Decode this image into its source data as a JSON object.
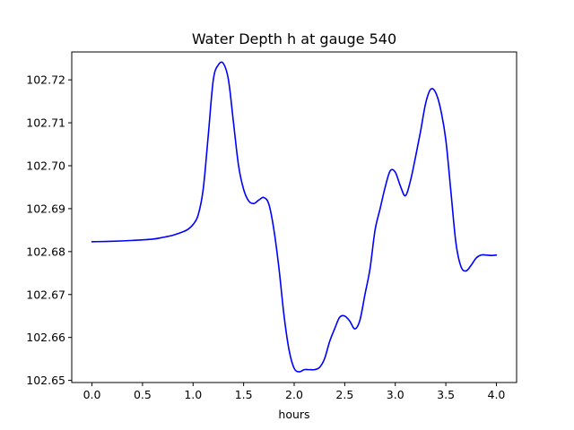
{
  "chart_data": {
    "type": "line",
    "title": "Water Depth h at gauge 540",
    "xlabel": "hours",
    "ylabel": "",
    "xlim": [
      -0.2,
      4.2
    ],
    "ylim": [
      102.6495,
      102.7265
    ],
    "xticks": [
      0.0,
      0.5,
      1.0,
      1.5,
      2.0,
      2.5,
      3.0,
      3.5,
      4.0
    ],
    "xtick_labels": [
      "0.0",
      "0.5",
      "1.0",
      "1.5",
      "2.0",
      "2.5",
      "3.0",
      "3.5",
      "4.0"
    ],
    "yticks": [
      102.65,
      102.66,
      102.67,
      102.68,
      102.69,
      102.7,
      102.71,
      102.72
    ],
    "ytick_labels": [
      "102.65",
      "102.66",
      "102.67",
      "102.68",
      "102.69",
      "102.70",
      "102.71",
      "102.72"
    ],
    "grid": false,
    "line_color": "#0000ff",
    "series": [
      {
        "x": [
          0.0,
          0.2,
          0.4,
          0.6,
          0.7,
          0.8,
          0.9,
          0.95,
          1.0,
          1.05,
          1.1,
          1.15,
          1.2,
          1.25,
          1.3,
          1.35,
          1.4,
          1.45,
          1.5,
          1.55,
          1.6,
          1.65,
          1.7,
          1.75,
          1.8,
          1.85,
          1.9,
          1.95,
          2.0,
          2.05,
          2.1,
          2.15,
          2.2,
          2.25,
          2.3,
          2.35,
          2.4,
          2.45,
          2.5,
          2.55,
          2.6,
          2.65,
          2.7,
          2.75,
          2.8,
          2.85,
          2.9,
          2.95,
          3.0,
          3.05,
          3.1,
          3.15,
          3.2,
          3.25,
          3.3,
          3.35,
          3.4,
          3.45,
          3.5,
          3.55,
          3.6,
          3.65,
          3.7,
          3.75,
          3.8,
          3.85,
          3.9,
          3.95,
          4.0
        ],
        "y": [
          102.6823,
          102.6824,
          102.6826,
          102.6829,
          102.6833,
          102.6838,
          102.6846,
          102.6852,
          102.6863,
          102.6885,
          102.6945,
          102.707,
          102.72,
          102.7235,
          102.7238,
          102.72,
          102.71,
          102.7,
          102.6945,
          102.6918,
          102.6912,
          102.692,
          102.6926,
          102.691,
          102.685,
          102.676,
          102.665,
          102.657,
          102.6528,
          102.652,
          102.6525,
          102.6525,
          102.6525,
          102.653,
          102.655,
          102.659,
          102.662,
          102.6647,
          102.665,
          102.6638,
          102.662,
          102.664,
          102.67,
          102.676,
          102.685,
          102.69,
          102.695,
          102.6988,
          102.6985,
          102.6953,
          102.693,
          102.6965,
          102.702,
          102.708,
          102.7145,
          102.7178,
          102.717,
          102.713,
          102.706,
          102.694,
          102.682,
          102.6765,
          102.6755,
          102.6768,
          102.6785,
          102.6792,
          102.6792,
          102.6791,
          102.6792
        ]
      }
    ]
  }
}
